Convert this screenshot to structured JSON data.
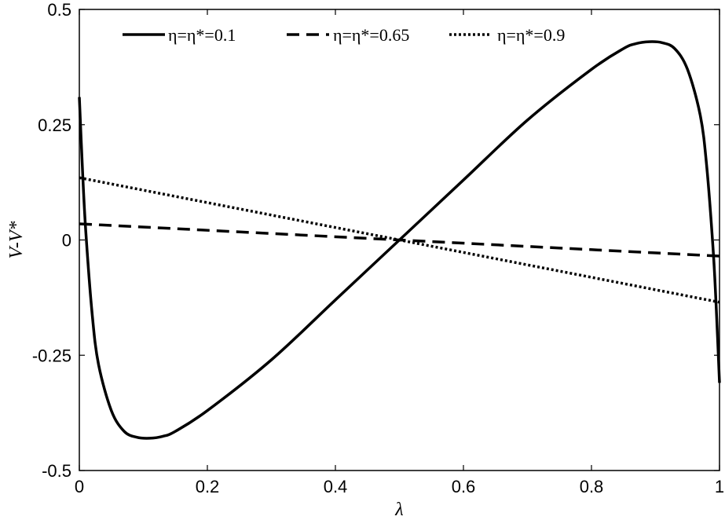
{
  "chart_data": {
    "type": "line",
    "xlabel": "λ",
    "ylabel": "V-V*",
    "xlim": [
      0,
      1
    ],
    "ylim": [
      -0.5,
      0.5
    ],
    "x_ticks": [
      0,
      0.2,
      0.4,
      0.6,
      0.8,
      1
    ],
    "x_tick_labels": [
      "0",
      "0.2",
      "0.4",
      "0.6",
      "0.8",
      "1"
    ],
    "y_ticks": [
      -0.5,
      -0.25,
      0,
      0.25,
      0.5
    ],
    "y_tick_labels": [
      "-0.5",
      "-0.25",
      "0",
      "0.25",
      "0.5"
    ],
    "grid": false,
    "legend_position": "top",
    "series": [
      {
        "name": "η=η*=0.1",
        "line_style": "solid",
        "color": "#000000",
        "x": [
          0,
          0.005,
          0.01,
          0.02,
          0.03,
          0.05,
          0.07,
          0.09,
          0.11,
          0.13,
          0.15,
          0.2,
          0.3,
          0.4,
          0.5,
          0.6,
          0.7,
          0.8,
          0.85,
          0.87,
          0.89,
          0.91,
          0.93,
          0.95,
          0.97,
          0.98,
          0.99,
          0.995,
          1
        ],
        "y": [
          0.31,
          0.15,
          0.02,
          -0.16,
          -0.27,
          -0.37,
          -0.415,
          -0.428,
          -0.43,
          -0.426,
          -0.415,
          -0.37,
          -0.26,
          -0.13,
          0.0,
          0.13,
          0.26,
          0.37,
          0.415,
          0.426,
          0.43,
          0.428,
          0.415,
          0.37,
          0.27,
          0.16,
          -0.02,
          -0.15,
          -0.31
        ]
      },
      {
        "name": "η=η*=0.65",
        "line_style": "dashed",
        "color": "#000000",
        "x": [
          0,
          1
        ],
        "y": [
          0.035,
          -0.035
        ]
      },
      {
        "name": "η=η*=0.9",
        "line_style": "dotted",
        "color": "#000000",
        "x": [
          0,
          1
        ],
        "y": [
          0.135,
          -0.135
        ]
      }
    ]
  }
}
